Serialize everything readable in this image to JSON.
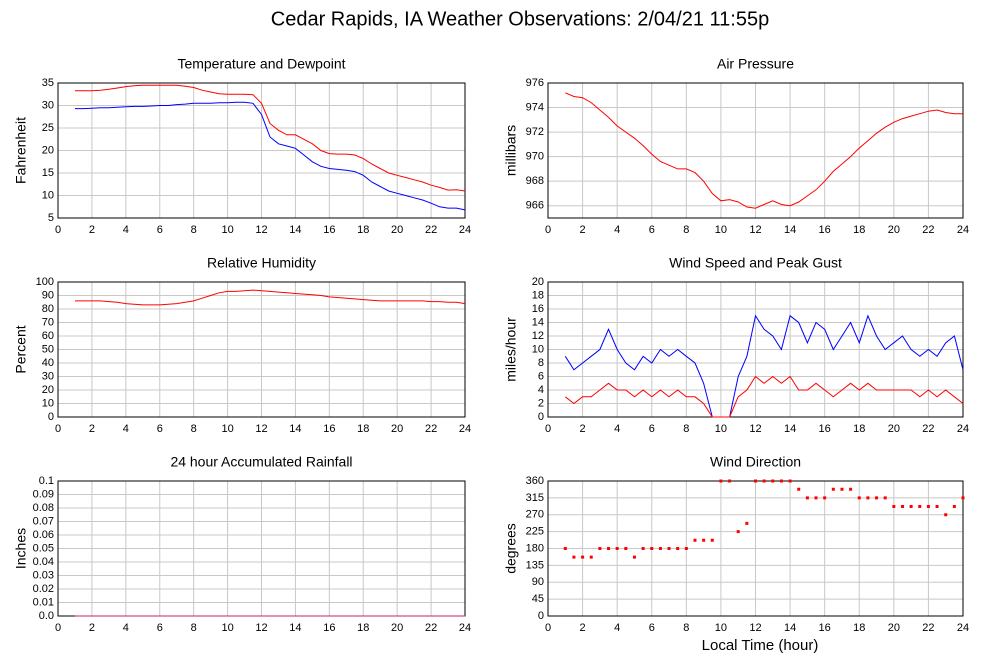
{
  "title": "Cedar Rapids, IA Weather Observations: 2/04/21 11:55p",
  "x_label": "Local Time (hour)",
  "chart_data": [
    {
      "type": "line",
      "title": "Temperature and Dewpoint",
      "y_label": "Fahrenheit",
      "x": [
        1,
        1.5,
        2,
        2.5,
        3,
        3.5,
        4,
        4.5,
        5,
        5.5,
        6,
        6.5,
        7,
        7.5,
        8,
        8.5,
        9,
        9.5,
        10,
        10.5,
        11,
        11.5,
        12,
        12.5,
        13,
        13.5,
        14,
        14.5,
        15,
        15.5,
        16,
        16.5,
        17,
        17.5,
        18,
        18.5,
        19,
        19.5,
        20,
        20.5,
        21,
        21.5,
        22,
        22.5,
        23,
        23.5,
        24
      ],
      "series": [
        {
          "color": "#ff0000",
          "values": [
            33.3,
            33.3,
            33.3,
            33.4,
            33.6,
            33.9,
            34.2,
            34.4,
            34.5,
            34.5,
            34.5,
            34.5,
            34.5,
            34.3,
            34.0,
            33.4,
            33.0,
            32.6,
            32.5,
            32.5,
            32.5,
            32.4,
            30.5,
            26,
            24.5,
            23.5,
            23.5,
            22.5,
            21.5,
            20,
            19.3,
            19.2,
            19.2,
            19,
            18.2,
            17,
            16,
            15,
            14.5,
            14,
            13.5,
            13,
            12.3,
            11.8,
            11.2,
            11.3,
            11
          ]
        },
        {
          "color": "#0000ff",
          "values": [
            29.3,
            29.3,
            29.4,
            29.5,
            29.5,
            29.6,
            29.7,
            29.8,
            29.8,
            29.9,
            30,
            30,
            30.2,
            30.3,
            30.5,
            30.5,
            30.5,
            30.6,
            30.6,
            30.7,
            30.7,
            30.5,
            28,
            23,
            21.5,
            21,
            20.5,
            19,
            17.5,
            16.5,
            16,
            15.8,
            15.6,
            15.3,
            14.5,
            13,
            12,
            11,
            10.5,
            10,
            9.5,
            9,
            8.3,
            7.5,
            7.2,
            7.2,
            6.8
          ]
        }
      ],
      "xlim": [
        0,
        24
      ],
      "xticks": [
        0,
        2,
        4,
        6,
        8,
        10,
        12,
        14,
        16,
        18,
        20,
        22,
        24
      ],
      "ylim": [
        5,
        35
      ],
      "yticks": [
        5,
        10,
        15,
        20,
        25,
        30,
        35
      ],
      "grid": true
    },
    {
      "type": "line",
      "title": "Air Pressure",
      "y_label": "millibars",
      "x": [
        1,
        1.5,
        2,
        2.5,
        3,
        3.5,
        4,
        4.5,
        5,
        5.5,
        6,
        6.5,
        7,
        7.5,
        8,
        8.5,
        9,
        9.5,
        10,
        10.5,
        11,
        11.5,
        12,
        12.5,
        13,
        13.5,
        14,
        14.5,
        15,
        15.5,
        16,
        16.5,
        17,
        17.5,
        18,
        18.5,
        19,
        19.5,
        20,
        20.5,
        21,
        21.5,
        22,
        22.5,
        23,
        23.5,
        24
      ],
      "series": [
        {
          "color": "#ff0000",
          "values": [
            975.2,
            974.9,
            974.8,
            974.4,
            973.8,
            973.2,
            972.5,
            972,
            971.5,
            970.9,
            970.2,
            969.6,
            969.3,
            969.0,
            969.0,
            968.7,
            968.0,
            967.0,
            966.4,
            966.5,
            966.3,
            965.9,
            965.8,
            966.1,
            966.4,
            966.1,
            966.0,
            966.3,
            966.8,
            967.3,
            968.0,
            968.8,
            969.4,
            970.0,
            970.7,
            971.3,
            971.9,
            972.4,
            972.8,
            973.1,
            973.3,
            973.5,
            973.7,
            973.8,
            973.6,
            973.5,
            973.5
          ]
        }
      ],
      "xlim": [
        0,
        24
      ],
      "xticks": [
        0,
        2,
        4,
        6,
        8,
        10,
        12,
        14,
        16,
        18,
        20,
        22,
        24
      ],
      "ylim": [
        965,
        976
      ],
      "yticks": [
        966,
        968,
        970,
        972,
        974,
        976
      ],
      "grid": true
    },
    {
      "type": "line",
      "title": "Relative Humidity",
      "y_label": "Percent",
      "x": [
        1,
        1.5,
        2,
        2.5,
        3,
        3.5,
        4,
        4.5,
        5,
        5.5,
        6,
        6.5,
        7,
        7.5,
        8,
        8.5,
        9,
        9.5,
        10,
        10.5,
        11,
        11.5,
        12,
        12.5,
        13,
        13.5,
        14,
        14.5,
        15,
        15.5,
        16,
        16.5,
        17,
        17.5,
        18,
        18.5,
        19,
        19.5,
        20,
        20.5,
        21,
        21.5,
        22,
        22.5,
        23,
        23.5,
        24
      ],
      "series": [
        {
          "color": "#ff0000",
          "values": [
            86,
            86,
            86,
            86,
            85.5,
            85,
            84,
            83.5,
            83,
            83,
            83,
            83.5,
            84,
            85,
            86,
            88,
            90,
            92,
            93,
            93,
            93.5,
            94,
            93.5,
            93,
            92.5,
            92,
            91.5,
            91,
            90.5,
            90,
            89,
            88.5,
            88,
            87.5,
            87,
            86.5,
            86,
            86,
            86,
            86,
            86,
            86,
            85.5,
            85.5,
            85,
            85,
            84
          ]
        }
      ],
      "xlim": [
        0,
        24
      ],
      "xticks": [
        0,
        2,
        4,
        6,
        8,
        10,
        12,
        14,
        16,
        18,
        20,
        22,
        24
      ],
      "ylim": [
        0,
        100
      ],
      "yticks": [
        0,
        10,
        20,
        30,
        40,
        50,
        60,
        70,
        80,
        90,
        100
      ],
      "grid": true
    },
    {
      "type": "line",
      "title": "Wind Speed and Peak Gust",
      "y_label": "miles/hour",
      "x": [
        1,
        1.5,
        2,
        2.5,
        3,
        3.5,
        4,
        4.5,
        5,
        5.5,
        6,
        6.5,
        7,
        7.5,
        8,
        8.5,
        9,
        9.5,
        10,
        10.5,
        11,
        11.5,
        12,
        12.5,
        13,
        13.5,
        14,
        14.5,
        15,
        15.5,
        16,
        16.5,
        17,
        17.5,
        18,
        18.5,
        19,
        19.5,
        20,
        20.5,
        21,
        21.5,
        22,
        22.5,
        23,
        23.5,
        24
      ],
      "series": [
        {
          "color": "#0000ff",
          "values": [
            9,
            7,
            8,
            9,
            10,
            13,
            10,
            8,
            7,
            9,
            8,
            10,
            9,
            10,
            9,
            8,
            5,
            0,
            0,
            0,
            6,
            9,
            15,
            13,
            12,
            10,
            15,
            14,
            11,
            14,
            13,
            10,
            12,
            14,
            11,
            15,
            12,
            10,
            11,
            12,
            10,
            9,
            10,
            9,
            11,
            12,
            7
          ]
        },
        {
          "color": "#ff0000",
          "values": [
            3,
            2,
            3,
            3,
            4,
            5,
            4,
            4,
            3,
            4,
            3,
            4,
            3,
            4,
            3,
            3,
            2,
            0,
            0,
            0,
            3,
            4,
            6,
            5,
            6,
            5,
            6,
            4,
            4,
            5,
            4,
            3,
            4,
            5,
            4,
            5,
            4,
            4,
            4,
            4,
            4,
            3,
            4,
            3,
            4,
            3,
            2
          ]
        }
      ],
      "xlim": [
        0,
        24
      ],
      "xticks": [
        0,
        2,
        4,
        6,
        8,
        10,
        12,
        14,
        16,
        18,
        20,
        22,
        24
      ],
      "ylim": [
        0,
        20
      ],
      "yticks": [
        0,
        2,
        4,
        6,
        8,
        10,
        12,
        14,
        16,
        18,
        20
      ],
      "grid": true
    },
    {
      "type": "line",
      "title": "24 hour Accumulated Rainfall",
      "y_label": "Inches",
      "x": [
        1,
        1.5,
        2,
        2.5,
        3,
        3.5,
        4,
        4.5,
        5,
        5.5,
        6,
        6.5,
        7,
        7.5,
        8,
        8.5,
        9,
        9.5,
        10,
        10.5,
        11,
        11.5,
        12,
        12.5,
        13,
        13.5,
        14,
        14.5,
        15,
        15.5,
        16,
        16.5,
        17,
        17.5,
        18,
        18.5,
        19,
        19.5,
        20,
        20.5,
        21,
        21.5,
        22,
        22.5,
        23,
        23.5,
        24
      ],
      "series": [
        {
          "color": "#c8206a",
          "values": [
            0,
            0,
            0,
            0,
            0,
            0,
            0,
            0,
            0,
            0,
            0,
            0,
            0,
            0,
            0,
            0,
            0,
            0,
            0,
            0,
            0,
            0,
            0,
            0,
            0,
            0,
            0,
            0,
            0,
            0,
            0,
            0,
            0,
            0,
            0,
            0,
            0,
            0,
            0,
            0,
            0,
            0,
            0,
            0,
            0,
            0,
            0
          ]
        }
      ],
      "xlim": [
        0,
        24
      ],
      "xticks": [
        0,
        2,
        4,
        6,
        8,
        10,
        12,
        14,
        16,
        18,
        20,
        22,
        24
      ],
      "ylim": [
        0,
        0.1
      ],
      "yticks": [
        {
          "value": 0,
          "label": "0.0"
        },
        0.01,
        0.02,
        0.03,
        0.04,
        0.05,
        0.06,
        0.07,
        0.08,
        0.09,
        0.1
      ],
      "grid": true
    },
    {
      "type": "scatter",
      "title": "Wind Direction",
      "y_label": "degrees",
      "x": [
        1,
        1.5,
        2,
        2.5,
        3,
        3.5,
        4,
        4.5,
        5,
        5.5,
        6,
        6.5,
        7,
        7.5,
        8,
        8.5,
        9,
        9.5,
        10,
        10.5,
        11,
        11.5,
        12,
        12.5,
        13,
        13.5,
        14,
        14.5,
        15,
        15.5,
        16,
        16.5,
        17,
        17.5,
        18,
        18.5,
        19,
        19.5,
        20,
        20.5,
        21,
        21.5,
        22,
        22.5,
        23,
        23.5,
        24
      ],
      "series": [
        {
          "color": "#ff0000",
          "values": [
            180,
            157,
            157,
            157,
            180,
            180,
            180,
            180,
            157,
            180,
            180,
            180,
            180,
            180,
            180,
            202,
            202,
            202,
            360,
            360,
            225,
            247,
            360,
            360,
            360,
            360,
            360,
            338,
            315,
            315,
            315,
            338,
            338,
            338,
            315,
            315,
            315,
            315,
            292,
            292,
            292,
            292,
            292,
            292,
            270,
            292,
            315
          ]
        }
      ],
      "xlim": [
        0,
        24
      ],
      "xticks": [
        0,
        2,
        4,
        6,
        8,
        10,
        12,
        14,
        16,
        18,
        20,
        22,
        24
      ],
      "ylim": [
        0,
        360
      ],
      "yticks": [
        0,
        45,
        90,
        135,
        180,
        225,
        270,
        315,
        360
      ],
      "grid": true
    }
  ]
}
